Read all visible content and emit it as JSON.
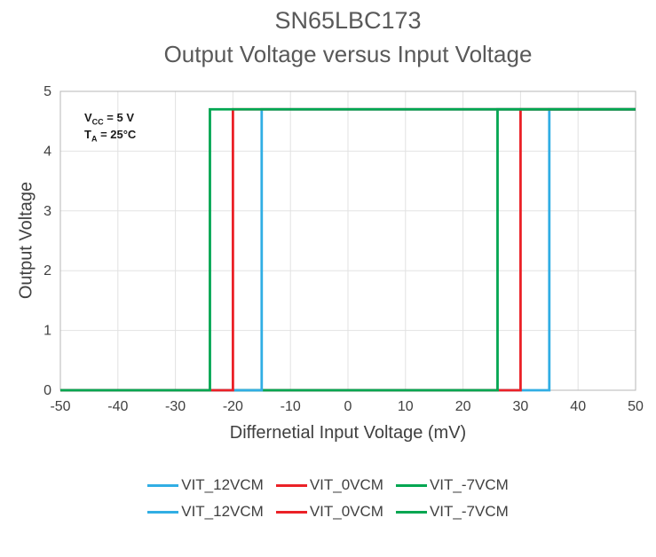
{
  "title": "SN65LBC173",
  "subtitle": "Output Voltage versus Input Voltage",
  "annotation": {
    "vcc_main": "V",
    "vcc_sub": "CC",
    "vcc_rest": " = 5 V",
    "ta_main": "T",
    "ta_sub": "A",
    "ta_rest": " = 25°C"
  },
  "colors": {
    "blue": "#31AEE4",
    "red": "#EB2127",
    "green": "#00A651",
    "grid": "#e2e2e2",
    "axis_border": "#b7b7b7",
    "title_text": "#595959",
    "tick_text": "#404040"
  },
  "chart_data": {
    "type": "line",
    "title": "SN65LBC173",
    "subtitle": "Output Voltage versus Input Voltage",
    "xlabel": "Differnetial Input Voltage (mV)",
    "ylabel": "Output Voltage",
    "xlim": [
      -50,
      50
    ],
    "ylim": [
      0,
      5
    ],
    "x_ticks": [
      -50,
      -40,
      -30,
      -20,
      -10,
      0,
      10,
      20,
      30,
      40,
      50
    ],
    "y_ticks": [
      0,
      1,
      2,
      3,
      4,
      5
    ],
    "grid": true,
    "legend_position": "bottom",
    "conditions": [
      "VCC = 5 V",
      "TA = 25°C"
    ],
    "output_high_v": 4.7,
    "output_low_v": 0,
    "series": [
      {
        "name": "VIT_12VCM",
        "threshold_mV": 35,
        "color": "#31AEE4",
        "points": [
          [
            -50,
            0
          ],
          [
            35,
            0
          ],
          [
            35,
            4.7
          ],
          [
            50,
            4.7
          ]
        ]
      },
      {
        "name": "VIT_0VCM",
        "threshold_mV": 30,
        "color": "#EB2127",
        "points": [
          [
            -50,
            0
          ],
          [
            30,
            0
          ],
          [
            30,
            4.7
          ],
          [
            50,
            4.7
          ]
        ]
      },
      {
        "name": "VIT_-7VCM",
        "threshold_mV": 26,
        "color": "#00A651",
        "points": [
          [
            -50,
            0
          ],
          [
            26,
            0
          ],
          [
            26,
            4.7
          ],
          [
            50,
            4.7
          ]
        ]
      },
      {
        "name": "VIT_12VCM",
        "threshold_mV": -15,
        "color": "#31AEE4",
        "points": [
          [
            -50,
            0
          ],
          [
            -15,
            0
          ],
          [
            -15,
            4.7
          ],
          [
            50,
            4.7
          ]
        ]
      },
      {
        "name": "VIT_0VCM",
        "threshold_mV": -20,
        "color": "#EB2127",
        "points": [
          [
            -50,
            0
          ],
          [
            -20,
            0
          ],
          [
            -20,
            4.7
          ],
          [
            50,
            4.7
          ]
        ]
      },
      {
        "name": "VIT_-7VCM",
        "threshold_mV": -24,
        "color": "#00A651",
        "points": [
          [
            -50,
            0
          ],
          [
            -24,
            0
          ],
          [
            -24,
            4.7
          ],
          [
            50,
            4.7
          ]
        ]
      }
    ],
    "legend": {
      "rows": [
        [
          {
            "label": "VIT_12VCM",
            "color": "#31AEE4"
          },
          {
            "label": "VIT_0VCM",
            "color": "#EB2127"
          },
          {
            "label": "VIT_-7VCM",
            "color": "#00A651"
          }
        ],
        [
          {
            "label": "VIT_12VCM",
            "color": "#31AEE4"
          },
          {
            "label": "VIT_0VCM",
            "color": "#EB2127"
          },
          {
            "label": "VIT_-7VCM",
            "color": "#00A651"
          }
        ]
      ]
    }
  }
}
